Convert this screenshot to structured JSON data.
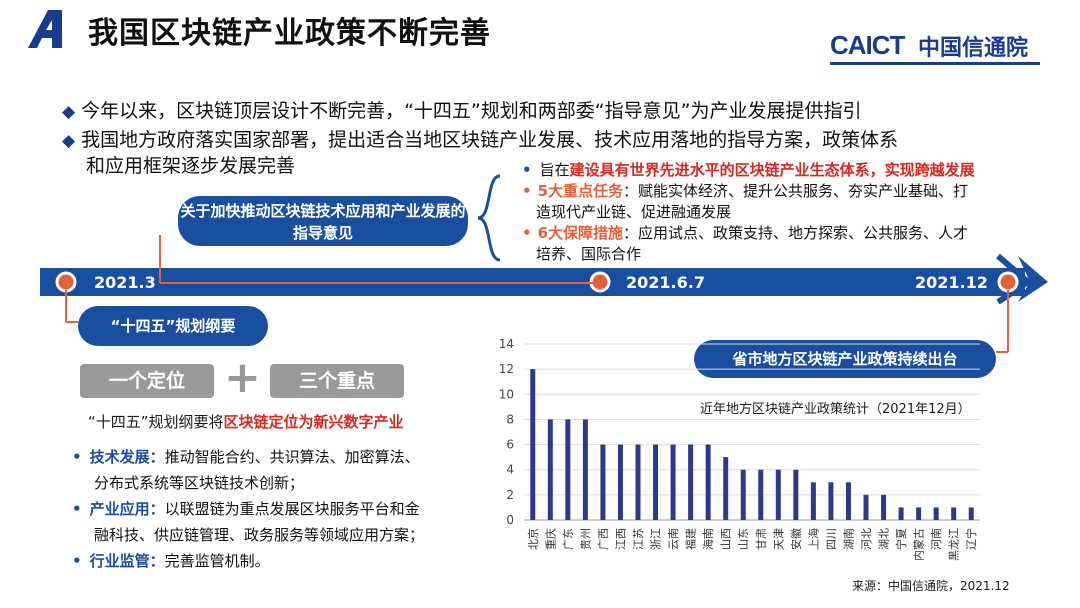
{
  "header": {
    "title": "我国区块链产业政策不断完善",
    "brand_mark": "CAICT",
    "brand_name": "中国信通院"
  },
  "bullets": [
    "今年以来，区块链顶层设计不断完善，“十四五”规划和两部委“指导意见”为产业发展提供指引",
    "我国地方政府落实国家部署，提出适合当地区块链产业发展、技术应用落地的指导方案，政策体系",
    "和应用框架逐步发展完善"
  ],
  "guidance": {
    "pill": "关于加快推动区块链技术应用和产业发展的指导意见",
    "items": [
      {
        "prefix": "旨在",
        "highlight": "建设具有世界先进水平的区块链产业生态体系，实现跨越发展",
        "rest": ""
      },
      {
        "prefix": "",
        "highlight": "5大重点任务",
        "rest": "：赋能实体经济、提升公共服务、夯实产业基础、打"
      },
      {
        "prefix": "",
        "highlight": "",
        "rest": "造现代产业链、促进融通发展"
      },
      {
        "prefix": "",
        "highlight": "6大保障措施",
        "rest": "：应用试点、政策支持、地方探索、公共服务、人才"
      },
      {
        "prefix": "",
        "highlight": "",
        "rest": "培养、国际合作"
      }
    ]
  },
  "timeline": {
    "dates": [
      "2021.3",
      "2021.6.7",
      "2021.12"
    ],
    "accent": "#1a4fa0",
    "node_color": "#e0623b"
  },
  "fyp": {
    "pill": "“十四五”规划纲要",
    "box_left": "一个定位",
    "plus": "+",
    "box_right": "三个重点",
    "statement_prefix": "“十四五”规划纲要将",
    "statement_highlight": "区块链定位为新兴数字产业",
    "items": [
      {
        "label": "技术发展：",
        "text": "推动智能合约、共识算法、加密算法、",
        "text2": "分布式系统等区块链技术创新；"
      },
      {
        "label": "产业应用：",
        "text": "以联盟链为重点发展区块服务平台和金",
        "text2": "融科技、供应链管理、政务服务等领域应用方案；"
      },
      {
        "label": "行业监管：",
        "text": "完善监管机制。",
        "text2": ""
      }
    ]
  },
  "local": {
    "pill": "省市地方区块链产业政策持续出台",
    "source": "来源：中国信通院，2021.12"
  },
  "chart_data": {
    "type": "bar",
    "title": "近年地方区块链产业政策统计（2021年12月）",
    "categories": [
      "北京",
      "重庆",
      "广东",
      "贵州",
      "广西",
      "江西",
      "江苏",
      "浙江",
      "云南",
      "福建",
      "海南",
      "山西",
      "山东",
      "甘肃",
      "天津",
      "安徽",
      "上海",
      "四川",
      "湖南",
      "河北",
      "湖北",
      "宁夏",
      "内蒙古",
      "河南",
      "黑龙江",
      "辽宁"
    ],
    "values": [
      12,
      8,
      8,
      8,
      6,
      6,
      6,
      6,
      6,
      6,
      6,
      5,
      4,
      4,
      4,
      4,
      3,
      3,
      3,
      2,
      2,
      1,
      1,
      1,
      1,
      1
    ],
    "ylim": [
      0,
      14
    ],
    "yticks": [
      0,
      2,
      4,
      6,
      8,
      10,
      12,
      14
    ],
    "bar_color": "#2b3a8c",
    "grid": true
  }
}
